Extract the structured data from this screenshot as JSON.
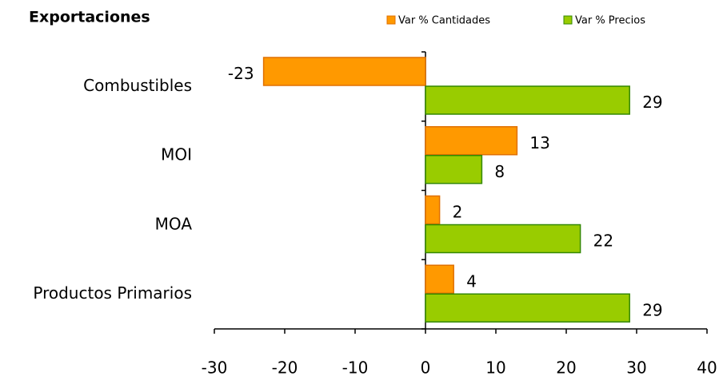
{
  "chart_data": {
    "type": "bar",
    "orientation": "horizontal",
    "title": "Exportaciones",
    "categories": [
      "Combustibles",
      "MOI",
      "MOA",
      "Productos Primarios"
    ],
    "series": [
      {
        "name": "Var % Cantidades",
        "color": "#ff9900",
        "values": [
          -23,
          13,
          2,
          4
        ]
      },
      {
        "name": "Var % Precios",
        "color": "#99cc00",
        "values": [
          29,
          8,
          22,
          29
        ]
      }
    ],
    "xlim": [
      -30,
      40
    ],
    "xticks": [
      -30,
      -20,
      -10,
      0,
      10,
      20,
      30,
      40
    ],
    "legend": "top"
  }
}
